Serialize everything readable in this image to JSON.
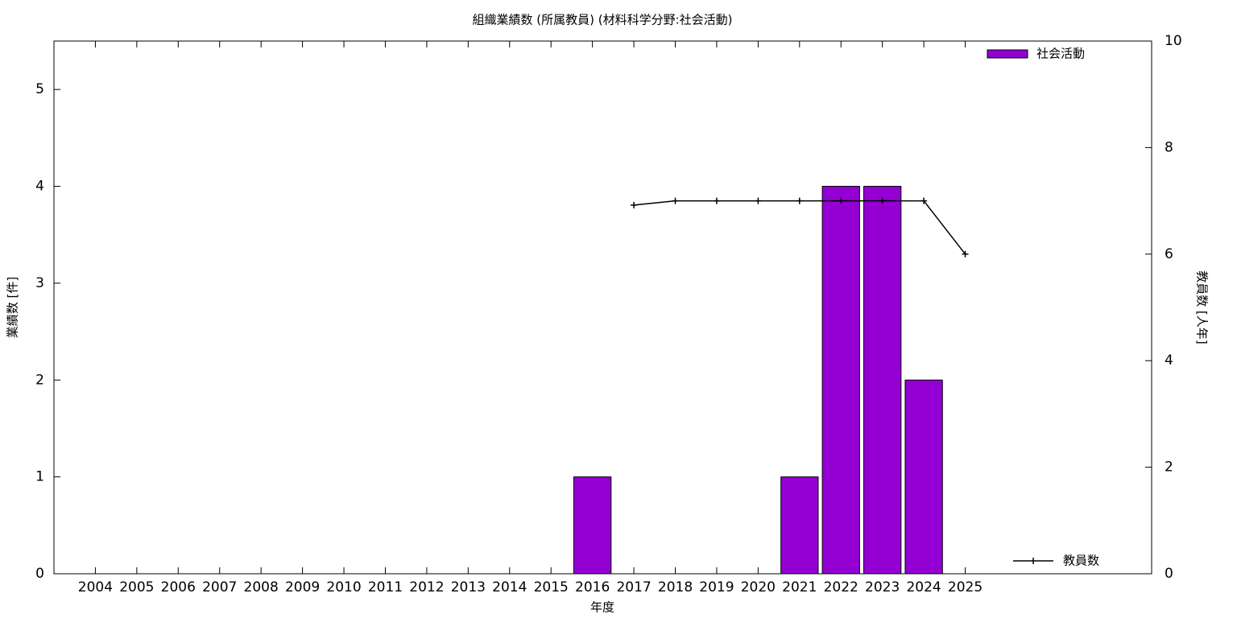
{
  "chart_data": {
    "type": "bar",
    "title": "組織業績数 (所属教員) (材料科学分野:社会活動)",
    "x_label": "年度",
    "y_label": "業績数 [件]",
    "y2_label": "教員数 [人年]",
    "categories": [
      "2004",
      "2005",
      "2006",
      "2007",
      "2008",
      "2009",
      "2010",
      "2011",
      "2012",
      "2013",
      "2014",
      "2015",
      "2016",
      "2017",
      "2018",
      "2019",
      "2020",
      "2021",
      "2022",
      "2023",
      "2024",
      "2025"
    ],
    "series": [
      {
        "name": "社会活動",
        "type": "bar",
        "color": "#9400d3",
        "values": [
          0,
          0,
          0,
          0,
          0,
          0,
          0,
          0,
          0,
          0,
          0,
          0,
          1,
          0,
          0,
          0,
          0,
          1,
          4,
          4,
          2,
          0
        ]
      },
      {
        "name": "教員数",
        "type": "line",
        "axis": "y2",
        "color": "#000000",
        "values": [
          null,
          null,
          null,
          null,
          null,
          null,
          null,
          null,
          null,
          null,
          null,
          null,
          null,
          6.92,
          7,
          7,
          7,
          7,
          7,
          7,
          7,
          6
        ]
      }
    ],
    "ylim": [
      0,
      5.5
    ],
    "yticks": [
      0,
      1,
      2,
      3,
      4,
      5
    ],
    "y2lim": [
      0,
      10
    ],
    "y2ticks": [
      0,
      2,
      4,
      6,
      8,
      10
    ],
    "legend": [
      "top-right",
      "bottom-right"
    ]
  }
}
